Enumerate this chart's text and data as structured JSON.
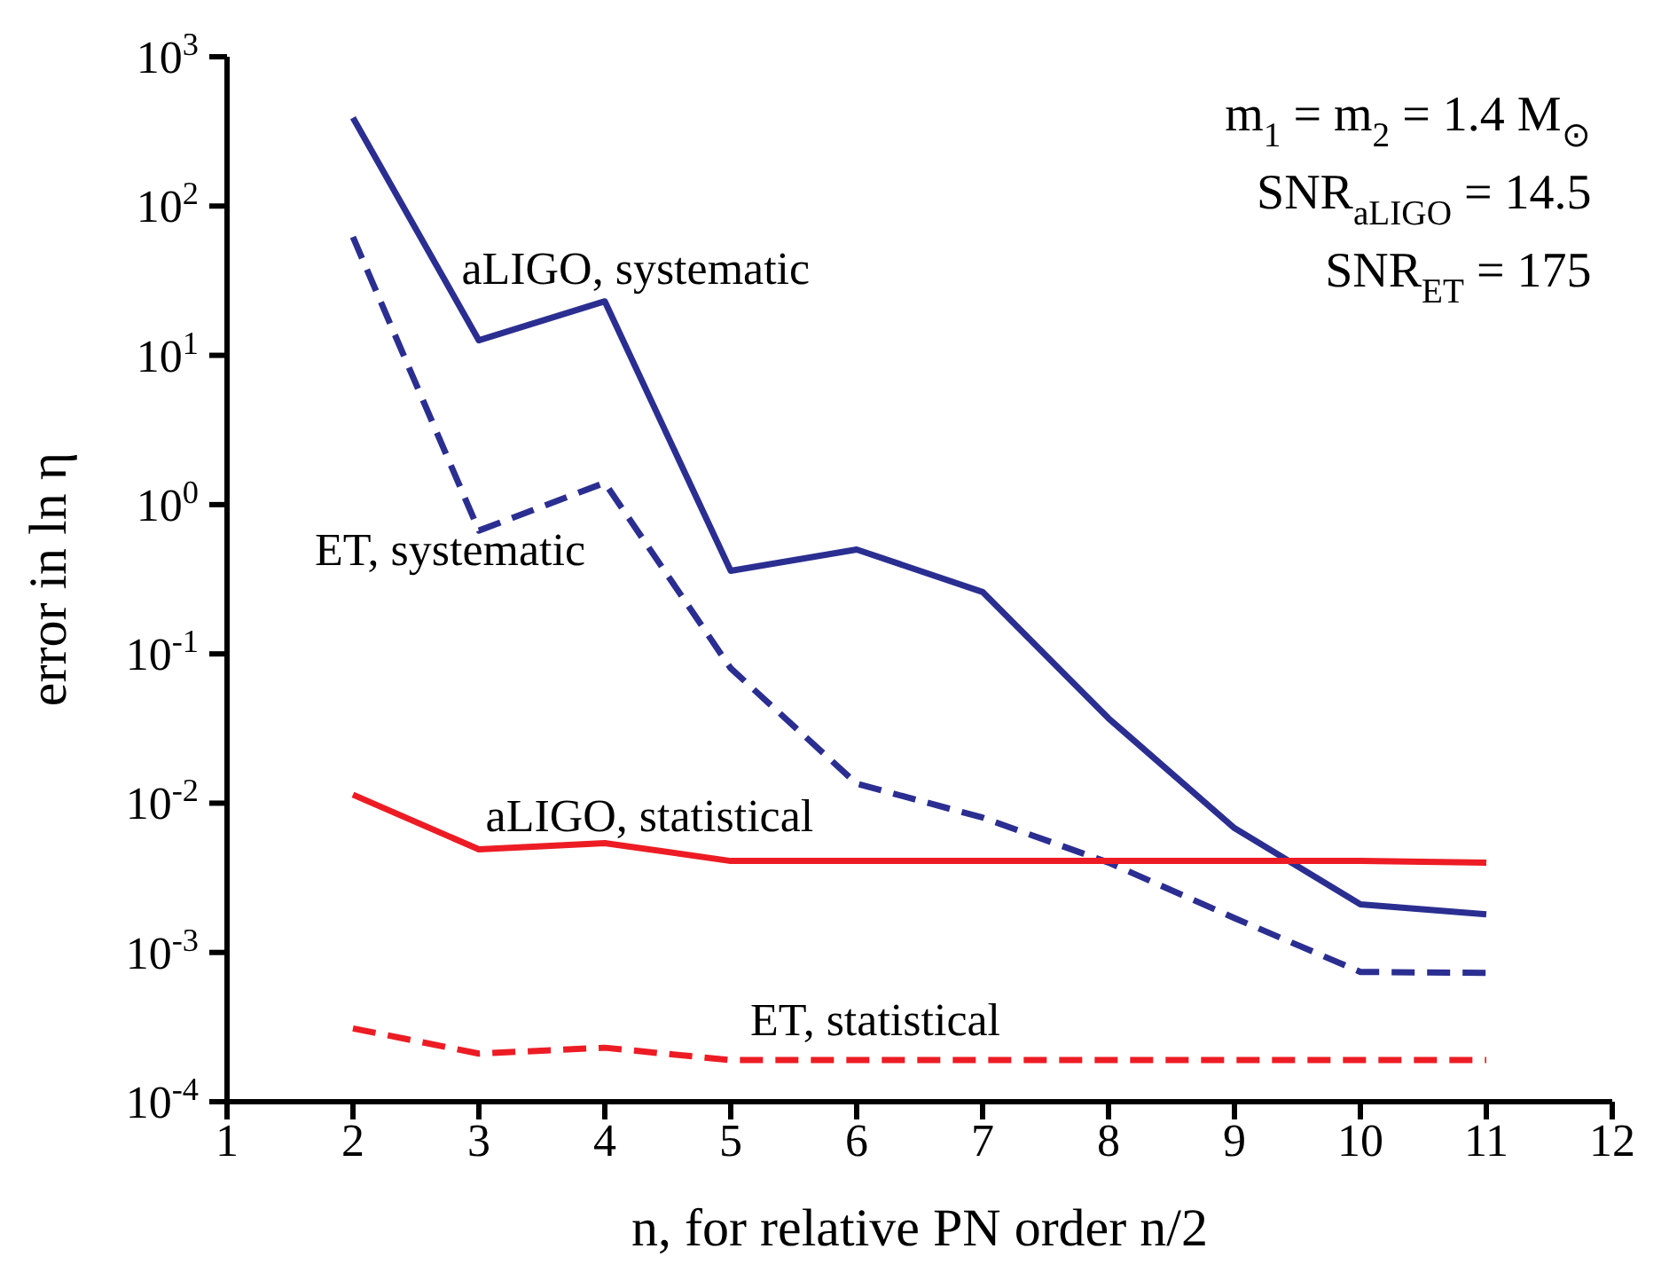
{
  "chart_data": {
    "type": "line",
    "xlabel": "n, for relative PN order n/2",
    "ylabel": "error in ln η",
    "log": "y",
    "x": [
      2,
      3,
      4,
      5,
      6,
      7,
      8,
      9,
      10,
      11
    ],
    "xlim": [
      1,
      12
    ],
    "xticks": [
      1,
      2,
      3,
      4,
      5,
      6,
      7,
      8,
      9,
      10,
      11,
      12
    ],
    "ylim": [
      0.0001,
      1000
    ],
    "yticks": [
      {
        "value": 0.0001,
        "label": "10$^{-4}$"
      },
      {
        "value": 0.001,
        "label": "10$^{-3}$"
      },
      {
        "value": 0.01,
        "label": "10$^{-2}$"
      },
      {
        "value": 0.1,
        "label": "10$^{-1}$"
      },
      {
        "value": 1,
        "label": "10$^{0}$"
      },
      {
        "value": 10,
        "label": "10$^{1}$"
      },
      {
        "value": 100,
        "label": "10$^{2}$"
      },
      {
        "value": 1000,
        "label": "10$^{3}$"
      }
    ],
    "series": [
      {
        "color": "#2b2e91",
        "line_style": "solid",
        "values": [
          390,
          12.6,
          23,
          0.36,
          0.5,
          0.26,
          0.037,
          0.0068,
          0.0021,
          0.0018
        ]
      },
      {
        "color": "#2b2e91",
        "line_style": "dashed",
        "values": [
          62,
          0.67,
          1.4,
          0.08,
          0.0135,
          0.008,
          0.004,
          0.0017,
          0.00074,
          0.00073
        ]
      },
      {
        "color": "#ed1c24",
        "line_style": "solid",
        "values": [
          0.0114,
          0.0049,
          0.0054,
          0.0041,
          0.0041,
          0.0041,
          0.0041,
          0.0041,
          0.0041,
          0.004
        ]
      },
      {
        "color": "#ed1c24",
        "line_style": "dashed",
        "values": [
          0.00031,
          0.00021,
          0.00023,
          0.00019,
          0.00019,
          0.00019,
          0.00019,
          0.00019,
          0.00019,
          0.00019
        ]
      }
    ],
    "annotations": [
      "aLIGO, systematic",
      "ET, systematic",
      "aLIGO, statistical",
      "ET, statistical",
      "m$_{1}$ = m$_{2}$ = 1.4 M$_{⊙}$",
      "SNR$_{aLIGO}$ = 14.5",
      "SNR$_{ET}$ = 175"
    ]
  }
}
